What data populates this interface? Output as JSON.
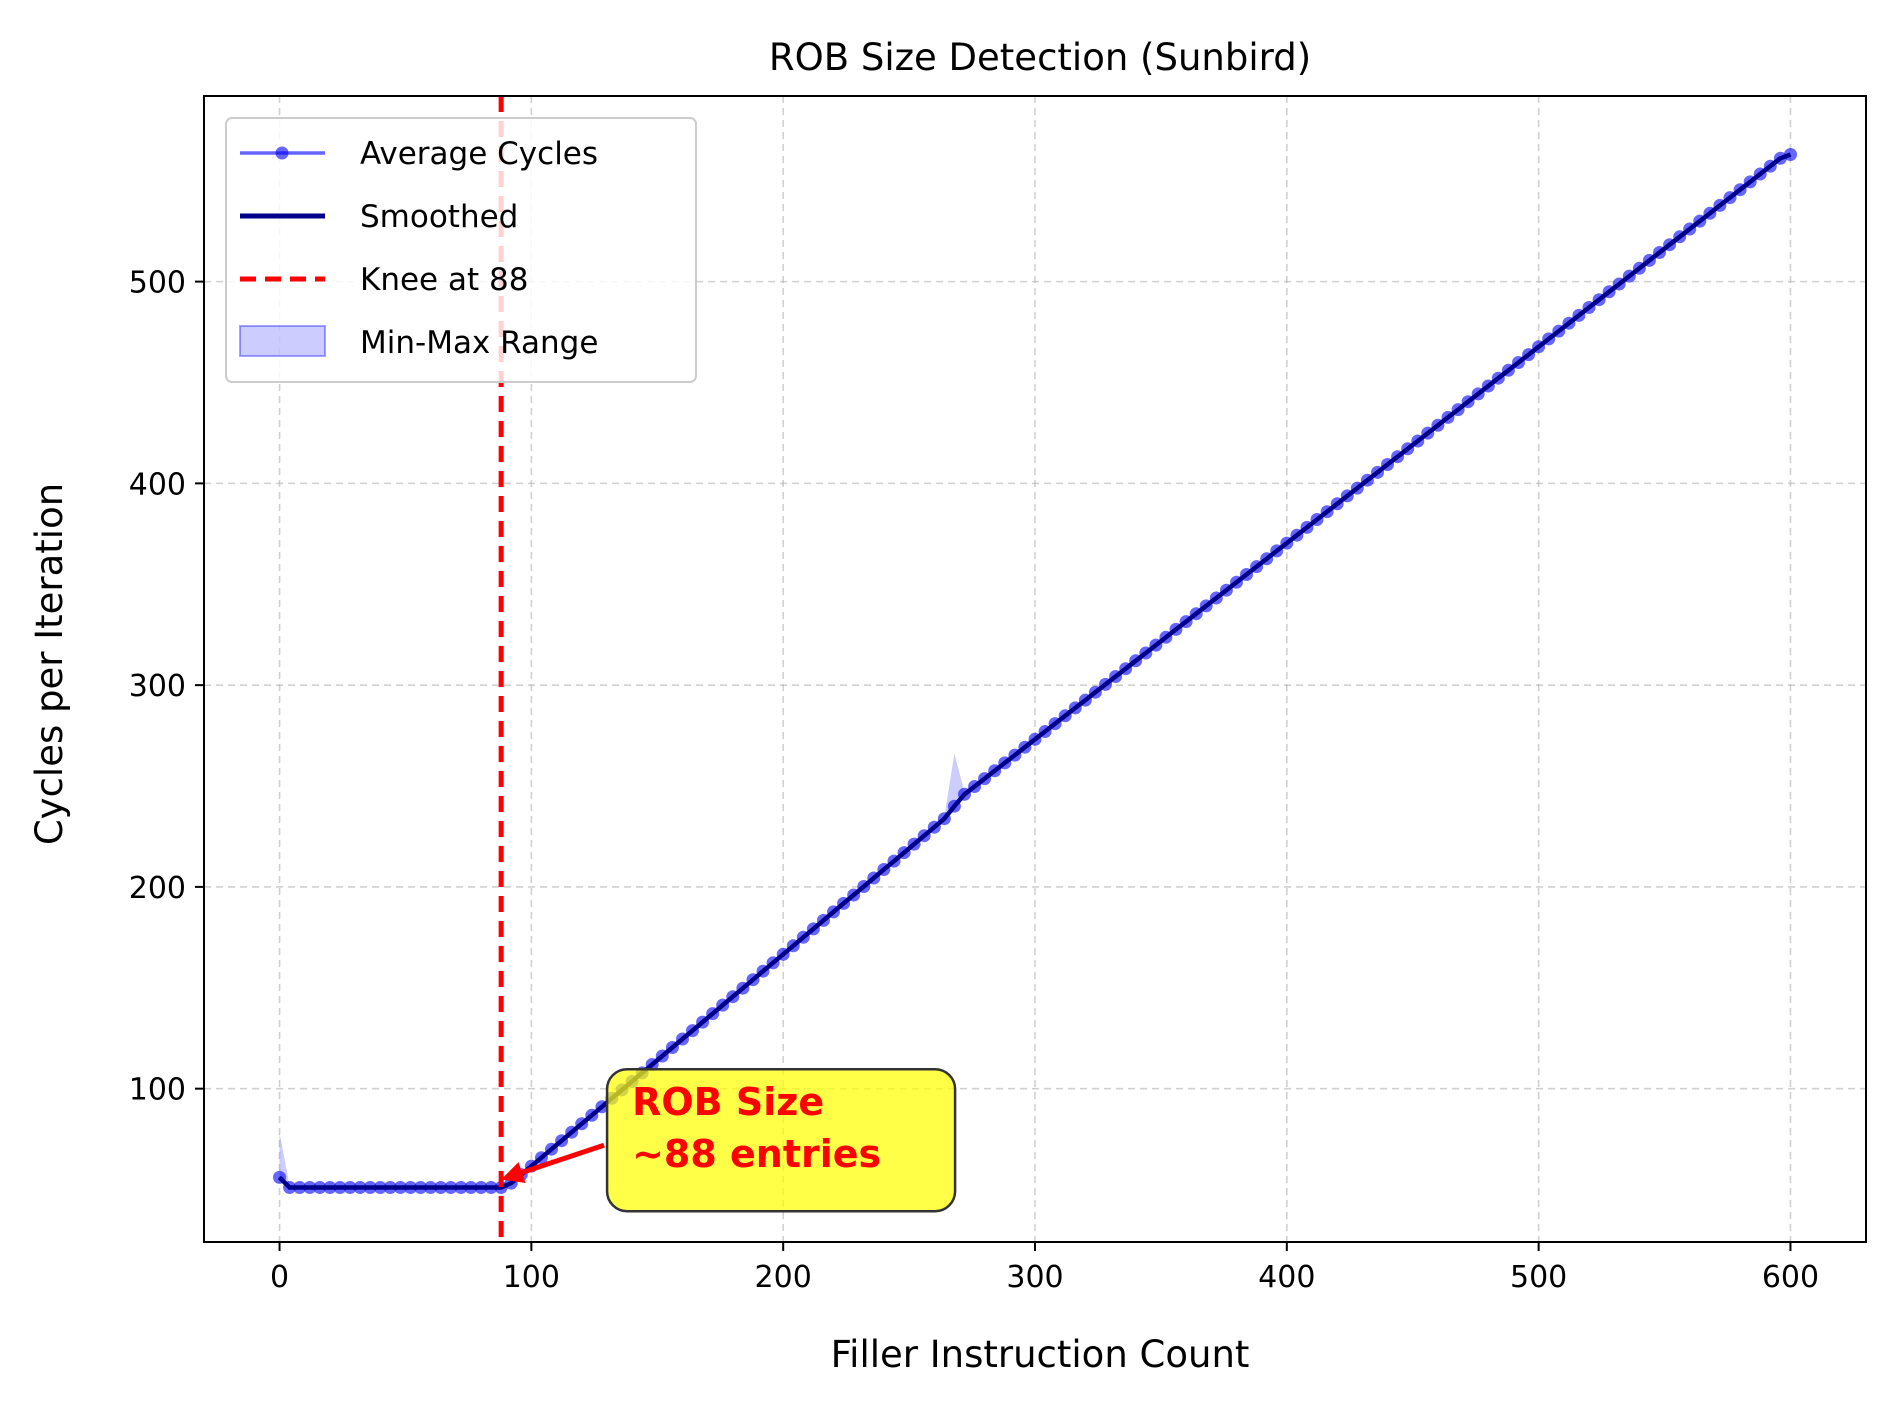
{
  "chart_data": {
    "type": "line",
    "title": "ROB Size Detection (Sunbird)",
    "xlabel": "Filler Instruction Count",
    "ylabel": "Cycles per Iteration",
    "xlim": [
      -30,
      630
    ],
    "ylim": [
      24,
      592
    ],
    "x_ticks": [
      0,
      100,
      200,
      300,
      400,
      500,
      600
    ],
    "y_ticks": [
      100,
      200,
      300,
      400,
      500
    ],
    "grid": true,
    "legend_position": "upper left",
    "series": [
      {
        "name": "Average Cycles",
        "color": "#0000ff",
        "style": "line-with-circle-markers",
        "x_start": 0,
        "x_end": 600,
        "x_step": 4,
        "rule": "flat ~51 from 4 to 88 (56 at 0); linear 51 + (x - 88) from 88 to 600; spike 240 at x = 268"
      },
      {
        "name": "Smoothed",
        "color": "#00008b",
        "style": "solid-line"
      },
      {
        "name": "Knee at 88",
        "color": "#ff0000",
        "style": "dashed-vertical",
        "x": 88
      },
      {
        "name": "Min-Max Range",
        "color": "#0000ff",
        "style": "filled-band",
        "spikes": [
          [
            0,
            78
          ],
          [
            268,
            266
          ]
        ]
      }
    ],
    "key_points": [
      [
        0,
        56
      ],
      [
        4,
        51
      ],
      [
        88,
        51
      ],
      [
        268,
        240
      ],
      [
        600,
        563
      ]
    ],
    "annotation": {
      "line1": "ROB Size",
      "line2": "~88 entries",
      "points_to": [
        88,
        55
      ],
      "text_at": [
        140,
        70
      ],
      "box_color": "#ffff00",
      "text_color": "#ff0000"
    }
  }
}
